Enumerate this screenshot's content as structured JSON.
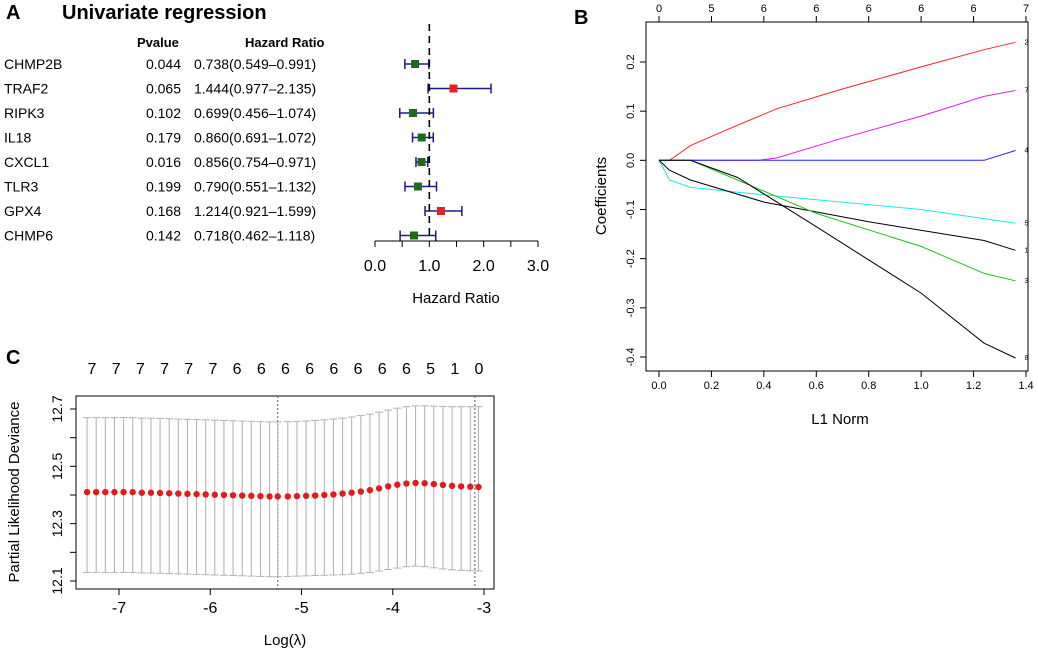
{
  "panels": {
    "a": "A",
    "b": "B",
    "c": "C"
  },
  "colors": {
    "protective": "#1e6b1e",
    "risk": "#e82020",
    "ci": "#1a1a8c",
    "dot": "#e41a1c",
    "bar": "#b0b0b0"
  },
  "chart_data": [
    {
      "type": "forest",
      "title": "Univariate regression",
      "col_pvalue": "Pvalue",
      "col_hr": "Hazard Ratio",
      "xlabel": "Hazard Ratio",
      "xticks": [
        "0.0",
        "1.0",
        "2.0",
        "3.0"
      ],
      "xlim": [
        0,
        3
      ],
      "reference": 1.0,
      "rows": [
        {
          "gene": "CHMP2B",
          "p": "0.044",
          "hr_text": "0.738(0.549–0.991)",
          "hr": 0.738,
          "lo": 0.549,
          "hi": 0.991
        },
        {
          "gene": "TRAF2",
          "p": "0.065",
          "hr_text": "1.444(0.977–2.135)",
          "hr": 1.444,
          "lo": 0.977,
          "hi": 2.135
        },
        {
          "gene": "RIPK3",
          "p": "0.102",
          "hr_text": "0.699(0.456–1.074)",
          "hr": 0.699,
          "lo": 0.456,
          "hi": 1.074
        },
        {
          "gene": "IL18",
          "p": "0.179",
          "hr_text": "0.860(0.691–1.072)",
          "hr": 0.86,
          "lo": 0.691,
          "hi": 1.072
        },
        {
          "gene": "CXCL1",
          "p": "0.016",
          "hr_text": "0.856(0.754–0.971)",
          "hr": 0.856,
          "lo": 0.754,
          "hi": 0.971
        },
        {
          "gene": "TLR3",
          "p": "0.199",
          "hr_text": "0.790(0.551–1.132)",
          "hr": 0.79,
          "lo": 0.551,
          "hi": 1.132
        },
        {
          "gene": "GPX4",
          "p": "0.168",
          "hr_text": "1.214(0.921–1.599)",
          "hr": 1.214,
          "lo": 0.921,
          "hi": 1.599
        },
        {
          "gene": "CHMP6",
          "p": "0.142",
          "hr_text": "0.718(0.462–1.118)",
          "hr": 0.718,
          "lo": 0.462,
          "hi": 1.118
        }
      ]
    },
    {
      "type": "line",
      "xlabel": "L1 Norm",
      "ylabel": "Coefficients",
      "xlim": [
        0,
        1.4
      ],
      "ylim": [
        -0.42,
        0.26
      ],
      "xticks": [
        "0.0",
        "0.2",
        "0.4",
        "0.6",
        "0.8",
        "1.0",
        "1.2",
        "1.4"
      ],
      "yticks": [
        "-0.4",
        "-0.3",
        "-0.2",
        "-0.1",
        "0.0",
        "0.1",
        "0.2"
      ],
      "top_ticks": [
        {
          "x": 0.0,
          "label": "0"
        },
        {
          "x": 0.2,
          "label": "5"
        },
        {
          "x": 0.4,
          "label": "6"
        },
        {
          "x": 0.6,
          "label": "6"
        },
        {
          "x": 0.8,
          "label": "6"
        },
        {
          "x": 1.0,
          "label": "6"
        },
        {
          "x": 1.2,
          "label": "6"
        },
        {
          "x": 1.4,
          "label": "7"
        }
      ],
      "series": [
        {
          "name": "2",
          "color": "#ff2020",
          "points": [
            [
              0,
              0
            ],
            [
              0.04,
              0
            ],
            [
              0.08,
              0.015
            ],
            [
              0.12,
              0.03
            ],
            [
              0.25,
              0.06
            ],
            [
              0.45,
              0.105
            ],
            [
              0.7,
              0.145
            ],
            [
              1.0,
              0.19
            ],
            [
              1.24,
              0.225
            ],
            [
              1.36,
              0.24
            ]
          ]
        },
        {
          "name": "7",
          "color": "#e020e0",
          "points": [
            [
              0,
              0
            ],
            [
              0.38,
              0
            ],
            [
              0.45,
              0.005
            ],
            [
              0.7,
              0.045
            ],
            [
              1.0,
              0.09
            ],
            [
              1.24,
              0.13
            ],
            [
              1.36,
              0.142
            ]
          ]
        },
        {
          "name": "4",
          "color": "#2020ff",
          "points": [
            [
              0,
              0
            ],
            [
              1.24,
              0
            ],
            [
              1.36,
              0.02
            ]
          ]
        },
        {
          "name": "5",
          "color": "#20e8e8",
          "points": [
            [
              0,
              0
            ],
            [
              0.04,
              -0.04
            ],
            [
              0.12,
              -0.055
            ],
            [
              0.3,
              -0.065
            ],
            [
              0.6,
              -0.08
            ],
            [
              1.0,
              -0.1
            ],
            [
              1.36,
              -0.128
            ]
          ]
        },
        {
          "name": "1",
          "color": "#000000",
          "points": [
            [
              0,
              0
            ],
            [
              0.04,
              -0.02
            ],
            [
              0.12,
              -0.04
            ],
            [
              0.4,
              -0.085
            ],
            [
              0.8,
              -0.125
            ],
            [
              1.24,
              -0.163
            ],
            [
              1.36,
              -0.183
            ]
          ]
        },
        {
          "name": "3",
          "color": "#20c020",
          "points": [
            [
              0,
              0
            ],
            [
              0.12,
              0
            ],
            [
              0.3,
              -0.04
            ],
            [
              0.6,
              -0.108
            ],
            [
              1.0,
              -0.175
            ],
            [
              1.24,
              -0.23
            ],
            [
              1.36,
              -0.245
            ]
          ]
        },
        {
          "name": "8",
          "color": "#000000",
          "points": [
            [
              0,
              0
            ],
            [
              0.12,
              0
            ],
            [
              0.3,
              -0.035
            ],
            [
              0.6,
              -0.135
            ],
            [
              1.0,
              -0.27
            ],
            [
              1.24,
              -0.372
            ],
            [
              1.36,
              -0.402
            ]
          ]
        }
      ]
    },
    {
      "type": "scatter",
      "xlabel": "Log(λ)",
      "ylabel": "Partial Likelihood Deviance",
      "xlim": [
        -7.45,
        -2.95
      ],
      "ylim": [
        12.08,
        12.72
      ],
      "xticks": [
        "-7",
        "-6",
        "-5",
        "-4",
        "-3"
      ],
      "yticks": [
        "12.1",
        "12.3",
        "12.5",
        "12.7"
      ],
      "top_counts": [
        "7",
        "7",
        "7",
        "7",
        "7",
        "7",
        "6",
        "6",
        "6",
        "6",
        "6",
        "6",
        "6",
        "6",
        "5",
        "1",
        "0"
      ],
      "vlines": [
        -5.26,
        -3.1
      ],
      "points": [
        {
          "x": -7.35,
          "y": 12.41,
          "lo": 12.13,
          "hi": 12.67
        },
        {
          "x": -7.25,
          "y": 12.41,
          "lo": 12.13,
          "hi": 12.67
        },
        {
          "x": -7.15,
          "y": 12.41,
          "lo": 12.13,
          "hi": 12.67
        },
        {
          "x": -7.05,
          "y": 12.41,
          "lo": 12.13,
          "hi": 12.67
        },
        {
          "x": -6.95,
          "y": 12.41,
          "lo": 12.13,
          "hi": 12.67
        },
        {
          "x": -6.85,
          "y": 12.41,
          "lo": 12.13,
          "hi": 12.67
        },
        {
          "x": -6.75,
          "y": 12.408,
          "lo": 12.128,
          "hi": 12.668
        },
        {
          "x": -6.65,
          "y": 12.408,
          "lo": 12.128,
          "hi": 12.668
        },
        {
          "x": -6.55,
          "y": 12.407,
          "lo": 12.127,
          "hi": 12.667
        },
        {
          "x": -6.45,
          "y": 12.406,
          "lo": 12.126,
          "hi": 12.666
        },
        {
          "x": -6.35,
          "y": 12.405,
          "lo": 12.125,
          "hi": 12.665
        },
        {
          "x": -6.25,
          "y": 12.404,
          "lo": 12.124,
          "hi": 12.664
        },
        {
          "x": -6.15,
          "y": 12.403,
          "lo": 12.123,
          "hi": 12.663
        },
        {
          "x": -6.05,
          "y": 12.402,
          "lo": 12.122,
          "hi": 12.662
        },
        {
          "x": -5.95,
          "y": 12.401,
          "lo": 12.121,
          "hi": 12.661
        },
        {
          "x": -5.85,
          "y": 12.4,
          "lo": 12.12,
          "hi": 12.66
        },
        {
          "x": -5.75,
          "y": 12.399,
          "lo": 12.119,
          "hi": 12.659
        },
        {
          "x": -5.65,
          "y": 12.398,
          "lo": 12.118,
          "hi": 12.658
        },
        {
          "x": -5.55,
          "y": 12.397,
          "lo": 12.117,
          "hi": 12.657
        },
        {
          "x": -5.45,
          "y": 12.396,
          "lo": 12.116,
          "hi": 12.656
        },
        {
          "x": -5.35,
          "y": 12.395,
          "lo": 12.115,
          "hi": 12.655
        },
        {
          "x": -5.26,
          "y": 12.395,
          "lo": 12.115,
          "hi": 12.655
        },
        {
          "x": -5.15,
          "y": 12.395,
          "lo": 12.116,
          "hi": 12.656
        },
        {
          "x": -5.05,
          "y": 12.396,
          "lo": 12.117,
          "hi": 12.657
        },
        {
          "x": -4.95,
          "y": 12.397,
          "lo": 12.118,
          "hi": 12.658
        },
        {
          "x": -4.85,
          "y": 12.398,
          "lo": 12.119,
          "hi": 12.66
        },
        {
          "x": -4.75,
          "y": 12.4,
          "lo": 12.12,
          "hi": 12.662
        },
        {
          "x": -4.65,
          "y": 12.402,
          "lo": 12.121,
          "hi": 12.665
        },
        {
          "x": -4.55,
          "y": 12.405,
          "lo": 12.122,
          "hi": 12.668
        },
        {
          "x": -4.45,
          "y": 12.408,
          "lo": 12.124,
          "hi": 12.672
        },
        {
          "x": -4.35,
          "y": 12.412,
          "lo": 12.127,
          "hi": 12.677
        },
        {
          "x": -4.25,
          "y": 12.417,
          "lo": 12.13,
          "hi": 12.682
        },
        {
          "x": -4.15,
          "y": 12.423,
          "lo": 12.135,
          "hi": 12.689
        },
        {
          "x": -4.05,
          "y": 12.43,
          "lo": 12.14,
          "hi": 12.696
        },
        {
          "x": -3.95,
          "y": 12.436,
          "lo": 12.145,
          "hi": 12.703
        },
        {
          "x": -3.85,
          "y": 12.44,
          "lo": 12.15,
          "hi": 12.708
        },
        {
          "x": -3.75,
          "y": 12.442,
          "lo": 12.152,
          "hi": 12.711
        },
        {
          "x": -3.65,
          "y": 12.441,
          "lo": 12.15,
          "hi": 12.711
        },
        {
          "x": -3.55,
          "y": 12.438,
          "lo": 12.146,
          "hi": 12.71
        },
        {
          "x": -3.45,
          "y": 12.435,
          "lo": 12.142,
          "hi": 12.709
        },
        {
          "x": -3.35,
          "y": 12.432,
          "lo": 12.139,
          "hi": 12.708
        },
        {
          "x": -3.25,
          "y": 12.43,
          "lo": 12.137,
          "hi": 12.708
        },
        {
          "x": -3.15,
          "y": 12.429,
          "lo": 12.136,
          "hi": 12.708
        },
        {
          "x": -3.06,
          "y": 12.428,
          "lo": 12.135,
          "hi": 12.708
        }
      ]
    }
  ]
}
